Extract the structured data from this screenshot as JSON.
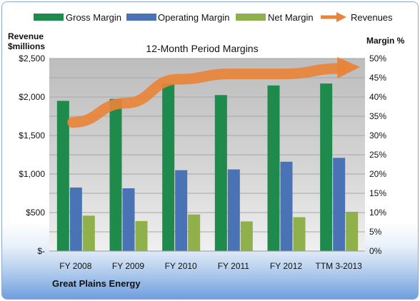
{
  "chart_data": {
    "type": "bar",
    "title": "12-Month Period Margins",
    "company": "Great Plains Energy",
    "ylabel_left_line1": "Revenue",
    "ylabel_left_line2": "$millions",
    "ylabel_right": "Margin %",
    "categories": [
      "FY 2008",
      "FY 2009",
      "FY 2010",
      "FY 2011",
      "FY 2012",
      "TTM 3-2013"
    ],
    "left_axis": {
      "min": 0,
      "max": 2500,
      "step": 500,
      "tick_labels": [
        "$-",
        "$500",
        "$1,000",
        "$1,500",
        "$2,000",
        "$2,500"
      ]
    },
    "right_axis": {
      "min": 0,
      "max": 50,
      "step": 5,
      "tick_labels": [
        "0%",
        "5%",
        "10%",
        "15%",
        "20%",
        "25%",
        "30%",
        "35%",
        "40%",
        "45%",
        "50%"
      ]
    },
    "series": [
      {
        "name": "Gross Margin",
        "axis": "right",
        "color": "#1e8a4c",
        "values": [
          39,
          39.5,
          43.5,
          40.5,
          43,
          43.5
        ]
      },
      {
        "name": "Operating Margin",
        "axis": "right",
        "color": "#4a73b5",
        "values": [
          16.5,
          16.3,
          21,
          21.2,
          23.2,
          24.2
        ]
      },
      {
        "name": "Net Margin",
        "axis": "right",
        "color": "#8fb04a",
        "values": [
          9.2,
          7.8,
          9.5,
          7.7,
          8.8,
          10.2
        ]
      },
      {
        "name": "Revenues",
        "axis": "left",
        "color": "#e8843a",
        "style": "arrow",
        "values": [
          1670,
          1920,
          2230,
          2300,
          2300,
          2370
        ]
      }
    ],
    "grid": true,
    "legend_position": "top"
  }
}
